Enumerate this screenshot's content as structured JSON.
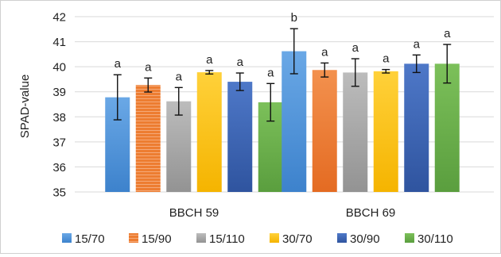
{
  "chart_data": {
    "type": "bar",
    "title": "",
    "xlabel": "",
    "ylabel": "SPAD-value",
    "ylim": [
      35,
      42
    ],
    "yticks": [
      35,
      36,
      37,
      38,
      39,
      40,
      41,
      42
    ],
    "grid": true,
    "legend_position": "bottom",
    "categories": [
      "BBCH 59",
      "BBCH 69"
    ],
    "series": [
      {
        "name": "15/70",
        "color": "#4a90d9",
        "values": [
          38.78,
          40.62
        ],
        "errors": [
          0.9,
          0.9
        ],
        "letters": [
          "a",
          "b"
        ]
      },
      {
        "name": "15/90",
        "color": "#ed7d31",
        "values": [
          39.27,
          39.87
        ],
        "errors": [
          0.28,
          0.28
        ],
        "letters": [
          "a",
          "a"
        ]
      },
      {
        "name": "15/110",
        "color": "#a5a5a5",
        "values": [
          38.62,
          39.77
        ],
        "errors": [
          0.55,
          0.55
        ],
        "letters": [
          "a",
          "a"
        ]
      },
      {
        "name": "30/70",
        "color": "#ffc000",
        "values": [
          39.78,
          39.82
        ],
        "errors": [
          0.07,
          0.07
        ],
        "letters": [
          "a",
          "a"
        ]
      },
      {
        "name": "30/90",
        "color": "#3b63b3",
        "values": [
          39.4,
          40.12
        ],
        "errors": [
          0.35,
          0.35
        ],
        "letters": [
          "a",
          "a"
        ]
      },
      {
        "name": "30/110",
        "color": "#6ab04c",
        "values": [
          38.58,
          40.12
        ],
        "errors": [
          0.75,
          0.77
        ],
        "letters": [
          "a",
          "a"
        ]
      }
    ]
  }
}
